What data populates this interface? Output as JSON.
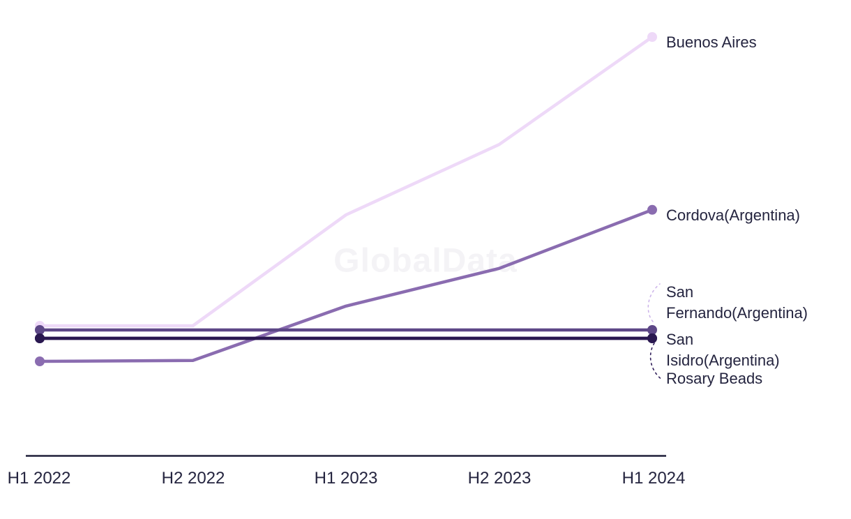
{
  "watermark": "GlobalData",
  "colors": {
    "axis_line": "#1e1e38",
    "label_text": "#24243f",
    "watermark": "#f4f3f6",
    "leader_light": "#cdb5ea",
    "leader_dark": "#33215c"
  },
  "chart_data": {
    "type": "line",
    "title": "",
    "xlabel": "",
    "ylabel": "",
    "x": [
      "H1 2022",
      "H2 2022",
      "H1 2023",
      "H2 2023",
      "H1 2024"
    ],
    "y_axis_visible": false,
    "units": "relative value (no y-axis shown; estimated from pixel positions, max = 100)",
    "ylim": [
      0,
      105
    ],
    "gridlines": false,
    "legend_position": "right-edge-direct-labels",
    "series": [
      {
        "name": "Buenos Aires",
        "color": "#eed9f8",
        "values": [
          31,
          31,
          57.5,
          74.3,
          100
        ]
      },
      {
        "name": "Cordova(Argentina)",
        "color": "#8a6cb0",
        "values": [
          22.5,
          22.7,
          35.7,
          44.7,
          58.7
        ]
      },
      {
        "name": "San Fernando(Argentina)",
        "color": "#5d4787",
        "values": [
          30,
          30,
          30,
          30,
          30
        ]
      },
      {
        "name": "San Isidro(Argentina)",
        "color": "#34215c",
        "values": [
          28,
          28,
          28,
          28,
          28
        ]
      },
      {
        "name": "Rosary Beads",
        "color": "#2a1850",
        "values": [
          28,
          28,
          28,
          28,
          28
        ]
      }
    ]
  }
}
